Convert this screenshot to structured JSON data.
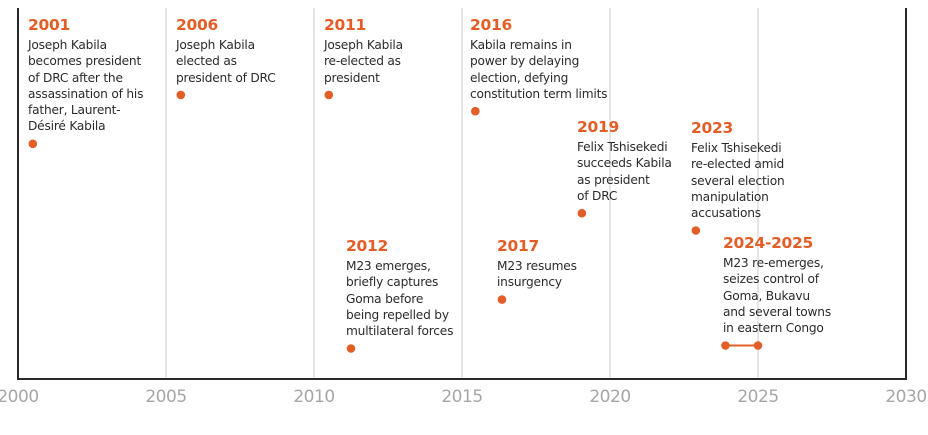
{
  "chart_data": {
    "type": "timeline",
    "title": "",
    "xlabel": "",
    "ylabel": "",
    "xlim": [
      2000,
      2030
    ],
    "x_ticks": [
      "2000",
      "2005",
      "2010",
      "2015",
      "2020",
      "2025",
      "2030"
    ],
    "grid": "vertical",
    "accent_color": "#e35d27",
    "events": [
      {
        "label": "2001",
        "start": 2000.5,
        "end": null,
        "description": "Joseph Kabila\nbecomes president\nof DRC after the\nassassination of his\nfather, Laurent-\nDésiré Kabila"
      },
      {
        "label": "2006",
        "start": 2005.5,
        "end": null,
        "description": "Joseph Kabila\nelected as\npresident of DRC"
      },
      {
        "label": "2011",
        "start": 2010.5,
        "end": null,
        "description": "Joseph Kabila\nre-elected as\npresident"
      },
      {
        "label": "2012",
        "start": 2011.25,
        "end": null,
        "description": "M23 emerges,\nbriefly captures\nGoma before\nbeing repelled by\nmultilateral forces"
      },
      {
        "label": "2016",
        "start": 2015.45,
        "end": null,
        "description": "Kabila remains in\npower by delaying\nelection, defying\nconstitution term limits"
      },
      {
        "label": "2017",
        "start": 2016.35,
        "end": null,
        "description": "M23 resumes\ninsurgency"
      },
      {
        "label": "2019",
        "start": 2019.05,
        "end": null,
        "description": "Felix Tshisekedi\nsucceeds Kabila\nas president\nof DRC"
      },
      {
        "label": "2023",
        "start": 2022.9,
        "end": null,
        "description": "Felix Tshisekedi\nre-elected amid\nseveral election\nmanipulation\naccusations"
      },
      {
        "label": "2024-2025",
        "start": 2023.9,
        "end": 2025.0,
        "description": "M23 re-emerges,\nseizes control of\nGoma, Bukavu\nand several towns\nin eastern Congo"
      }
    ]
  }
}
